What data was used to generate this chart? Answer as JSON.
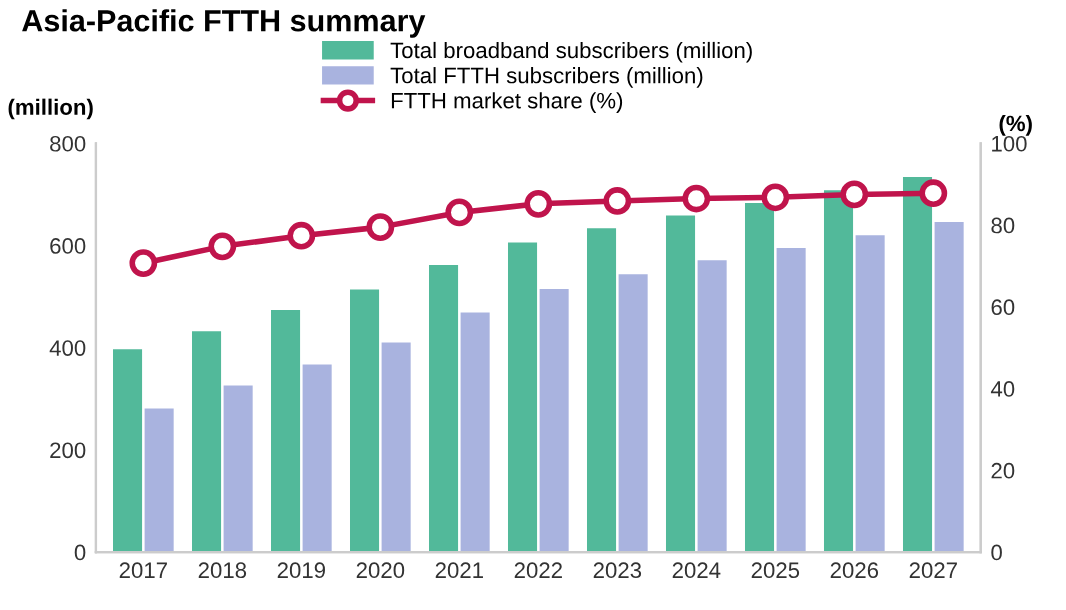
{
  "chart_data": {
    "type": "bar",
    "title": "Asia-Pacific FTTH summary",
    "ylabel": "(million)",
    "y2label": "(%)",
    "categories": [
      "2017",
      "2018",
      "2019",
      "2020",
      "2021",
      "2022",
      "2023",
      "2024",
      "2025",
      "2026",
      "2027"
    ],
    "series": [
      {
        "name": "Total broadband subscribers (million)",
        "color": "#52b99a",
        "values": [
          397,
          432,
          474,
          514,
          562,
          606,
          634,
          659,
          683,
          708,
          734
        ]
      },
      {
        "name": "Total FTTH subscribers (million)",
        "color": "#a9b3df",
        "values": [
          281,
          326,
          367,
          410,
          469,
          515,
          544,
          571,
          595,
          620,
          646
        ]
      },
      {
        "name": "FTTH market share (%)",
        "type": "line",
        "axis": "y2",
        "color": "#c0144c",
        "marker": "circle",
        "values": [
          70.7,
          74.8,
          77.4,
          79.5,
          83.1,
          85.2,
          85.9,
          86.5,
          86.8,
          87.5,
          87.8
        ]
      }
    ],
    "ylim": [
      0,
      800
    ],
    "yticks": [
      0,
      200,
      400,
      600,
      800
    ],
    "y2lim": [
      0,
      100
    ],
    "y2ticks": [
      0,
      20,
      40,
      60,
      80,
      100
    ],
    "grid": false,
    "legend": "top"
  }
}
